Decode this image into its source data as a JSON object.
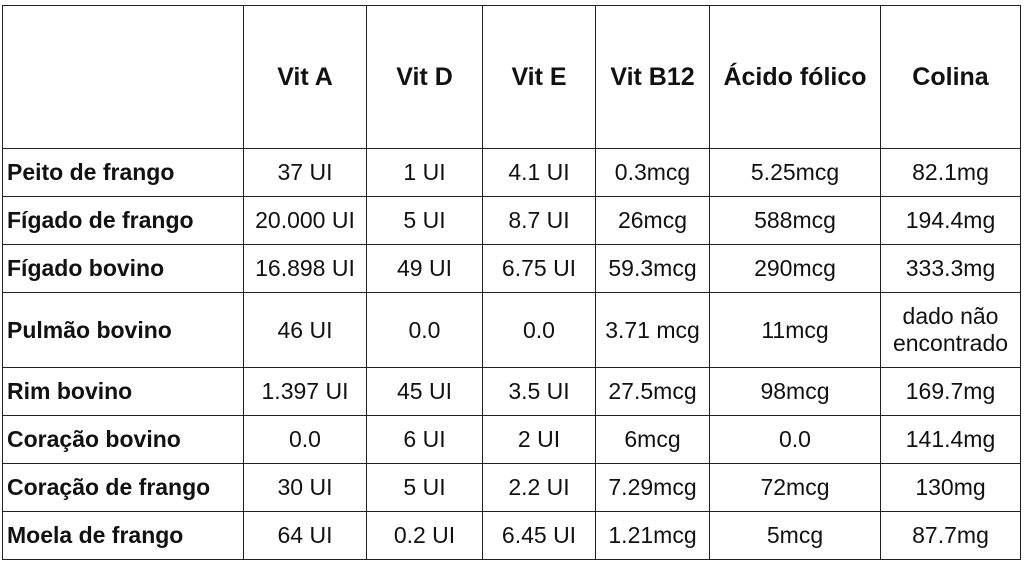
{
  "table": {
    "header": [
      "Vit A",
      "Vit D",
      "Vit E",
      "Vit B12",
      "Ácido fólico",
      "Colina"
    ],
    "rows": [
      [
        "Peito de frango",
        "37 UI",
        "1 UI",
        "4.1 UI",
        "0.3mcg",
        "5.25mcg",
        "82.1mg"
      ],
      [
        "Fígado de frango",
        "20.000 UI",
        "5 UI",
        "8.7 UI",
        "26mcg",
        "588mcg",
        "194.4mg"
      ],
      [
        "Fígado bovino",
        "16.898 UI",
        "49 UI",
        "6.75 UI",
        "59.3mcg",
        "290mcg",
        "333.3mg"
      ],
      [
        "Pulmão bovino",
        "46 UI",
        "0.0",
        "0.0",
        "3.71 mcg",
        "11mcg",
        "dado não encontrado"
      ],
      [
        "Rim bovino",
        "1.397 UI",
        "45 UI",
        "3.5 UI",
        "27.5mcg",
        "98mcg",
        "169.7mg"
      ],
      [
        "Coração bovino",
        "0.0",
        "6 UI",
        "2 UI",
        "6mcg",
        "0.0",
        "141.4mg"
      ],
      [
        "Coração de frango",
        "30 UI",
        "5 UI",
        "2.2 UI",
        "7.29mcg",
        "72mcg",
        "130mg"
      ],
      [
        "Moela de frango",
        "64 UI",
        "0.2 UI",
        "6.45 UI",
        "1.21mcg",
        "5mcg",
        "87.7mg"
      ]
    ]
  }
}
